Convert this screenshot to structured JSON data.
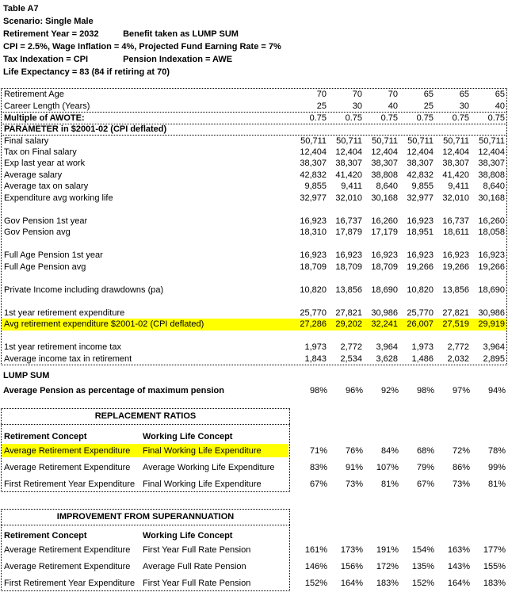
{
  "colors": {
    "highlight": "#FFFF00",
    "text": "#000000",
    "background": "#FFFFFF"
  },
  "header": {
    "title": "Table A7",
    "scenario": "Scenario: Single Male",
    "retirement_year": "Retirement Year = 2032",
    "benefit": "Benefit taken as LUMP SUM",
    "assumptions": "CPI = 2.5%, Wage Inflation = 4%, Projected Fund Earning Rate = 7%",
    "tax_indexation": "Tax Indexation = CPI",
    "pension_indexation": "Pension Indexation = AWE",
    "life_expectancy": "Life Expectancy = 83 (84 if retiring at 70)"
  },
  "main_table": {
    "rows": [
      {
        "label": "Retirement Age",
        "values": [
          "70",
          "70",
          "70",
          "65",
          "65",
          "65"
        ]
      },
      {
        "label": "Career Length (Years)",
        "values": [
          "25",
          "30",
          "40",
          "25",
          "30",
          "40"
        ]
      },
      {
        "label": "Multiple of AWOTE:",
        "bold": true,
        "rule_above": true,
        "values": [
          "0.75",
          "0.75",
          "0.75",
          "0.75",
          "0.75",
          "0.75"
        ]
      },
      {
        "label": "PARAMETER in $2001-02 (CPI deflated)",
        "bold": true,
        "rule_above": true,
        "values": []
      },
      {
        "label": "Final salary",
        "rule_above": true,
        "values": [
          "50,711",
          "50,711",
          "50,711",
          "50,711",
          "50,711",
          "50,711"
        ]
      },
      {
        "label": "Tax on Final salary",
        "values": [
          "12,404",
          "12,404",
          "12,404",
          "12,404",
          "12,404",
          "12,404"
        ]
      },
      {
        "label": "Exp last year at work",
        "values": [
          "38,307",
          "38,307",
          "38,307",
          "38,307",
          "38,307",
          "38,307"
        ]
      },
      {
        "label": "Average salary",
        "values": [
          "42,832",
          "41,420",
          "38,808",
          "42,832",
          "41,420",
          "38,808"
        ]
      },
      {
        "label": "Average tax on salary",
        "values": [
          "9,855",
          "9,411",
          "8,640",
          "9,855",
          "9,411",
          "8,640"
        ]
      },
      {
        "label": "Expenditure avg working life",
        "values": [
          "32,977",
          "32,010",
          "30,168",
          "32,977",
          "32,010",
          "30,168"
        ]
      },
      {
        "label": "Gov Pension 1st year",
        "gap_before": true,
        "values": [
          "16,923",
          "16,737",
          "16,260",
          "16,923",
          "16,737",
          "16,260"
        ]
      },
      {
        "label": "Gov Pension avg",
        "values": [
          "18,310",
          "17,879",
          "17,179",
          "18,951",
          "18,611",
          "18,058"
        ]
      },
      {
        "label": "Full Age Pension 1st year",
        "gap_before": true,
        "values": [
          "16,923",
          "16,923",
          "16,923",
          "16,923",
          "16,923",
          "16,923"
        ]
      },
      {
        "label": "Full Age Pension avg",
        "values": [
          "18,709",
          "18,709",
          "18,709",
          "19,266",
          "19,266",
          "19,266"
        ]
      },
      {
        "label": "Private Income including drawdowns (pa)",
        "gap_before": true,
        "values": [
          "10,820",
          "13,856",
          "18,690",
          "10,820",
          "13,856",
          "18,690"
        ]
      },
      {
        "label": "1st year retirement expenditure",
        "gap_before": true,
        "values": [
          "25,770",
          "27,821",
          "30,986",
          "25,770",
          "27,821",
          "30,986"
        ]
      },
      {
        "label": "Avg retirement expenditure $2001-02 (CPI deflated)",
        "highlight": true,
        "values": [
          "27,286",
          "29,202",
          "32,241",
          "26,007",
          "27,519",
          "29,919"
        ]
      },
      {
        "label": "1st year retirement income tax",
        "gap_before": true,
        "values": [
          "1,973",
          "2,772",
          "3,964",
          "1,973",
          "2,772",
          "3,964"
        ]
      },
      {
        "label": "Average income tax in retirement",
        "values": [
          "1,843",
          "2,534",
          "3,628",
          "1,486",
          "2,032",
          "2,895"
        ]
      }
    ]
  },
  "lump_sum": {
    "heading": "LUMP SUM",
    "avg_pension_label": "Average Pension as percentage of maximum pension",
    "avg_pension_values": [
      "98%",
      "96%",
      "92%",
      "98%",
      "97%",
      "94%"
    ]
  },
  "replacement": {
    "title": "REPLACEMENT RATIOS",
    "col1_header": "Retirement Concept",
    "col2_header": "Working Life Concept",
    "rows": [
      {
        "retirement": "Average Retirement Expenditure",
        "working": "Final Working Life Expenditure",
        "highlight": true,
        "values": [
          "71%",
          "76%",
          "84%",
          "68%",
          "72%",
          "78%"
        ]
      },
      {
        "retirement": "Average Retirement Expenditure",
        "working": "Average Working Life Expenditure",
        "values": [
          "83%",
          "91%",
          "107%",
          "79%",
          "86%",
          "99%"
        ]
      },
      {
        "retirement": "First Retirement Year Expenditure",
        "working": "Final Working Life Expenditure",
        "values": [
          "67%",
          "73%",
          "81%",
          "67%",
          "73%",
          "81%"
        ]
      }
    ]
  },
  "improvement": {
    "title": "IMPROVEMENT FROM SUPERANNUATION",
    "col1_header": "Retirement Concept",
    "col2_header": "Working Life Concept",
    "rows": [
      {
        "retirement": "Average Retirement Expenditure",
        "working": "First Year Full Rate Pension",
        "values": [
          "161%",
          "173%",
          "191%",
          "154%",
          "163%",
          "177%"
        ]
      },
      {
        "retirement": "Average Retirement Expenditure",
        "working": "Average Full Rate Pension",
        "values": [
          "146%",
          "156%",
          "172%",
          "135%",
          "143%",
          "155%"
        ]
      },
      {
        "retirement": "First Retirement Year Expenditure",
        "working": "First Year Full Rate Pension",
        "values": [
          "152%",
          "164%",
          "183%",
          "152%",
          "164%",
          "183%"
        ]
      }
    ]
  }
}
